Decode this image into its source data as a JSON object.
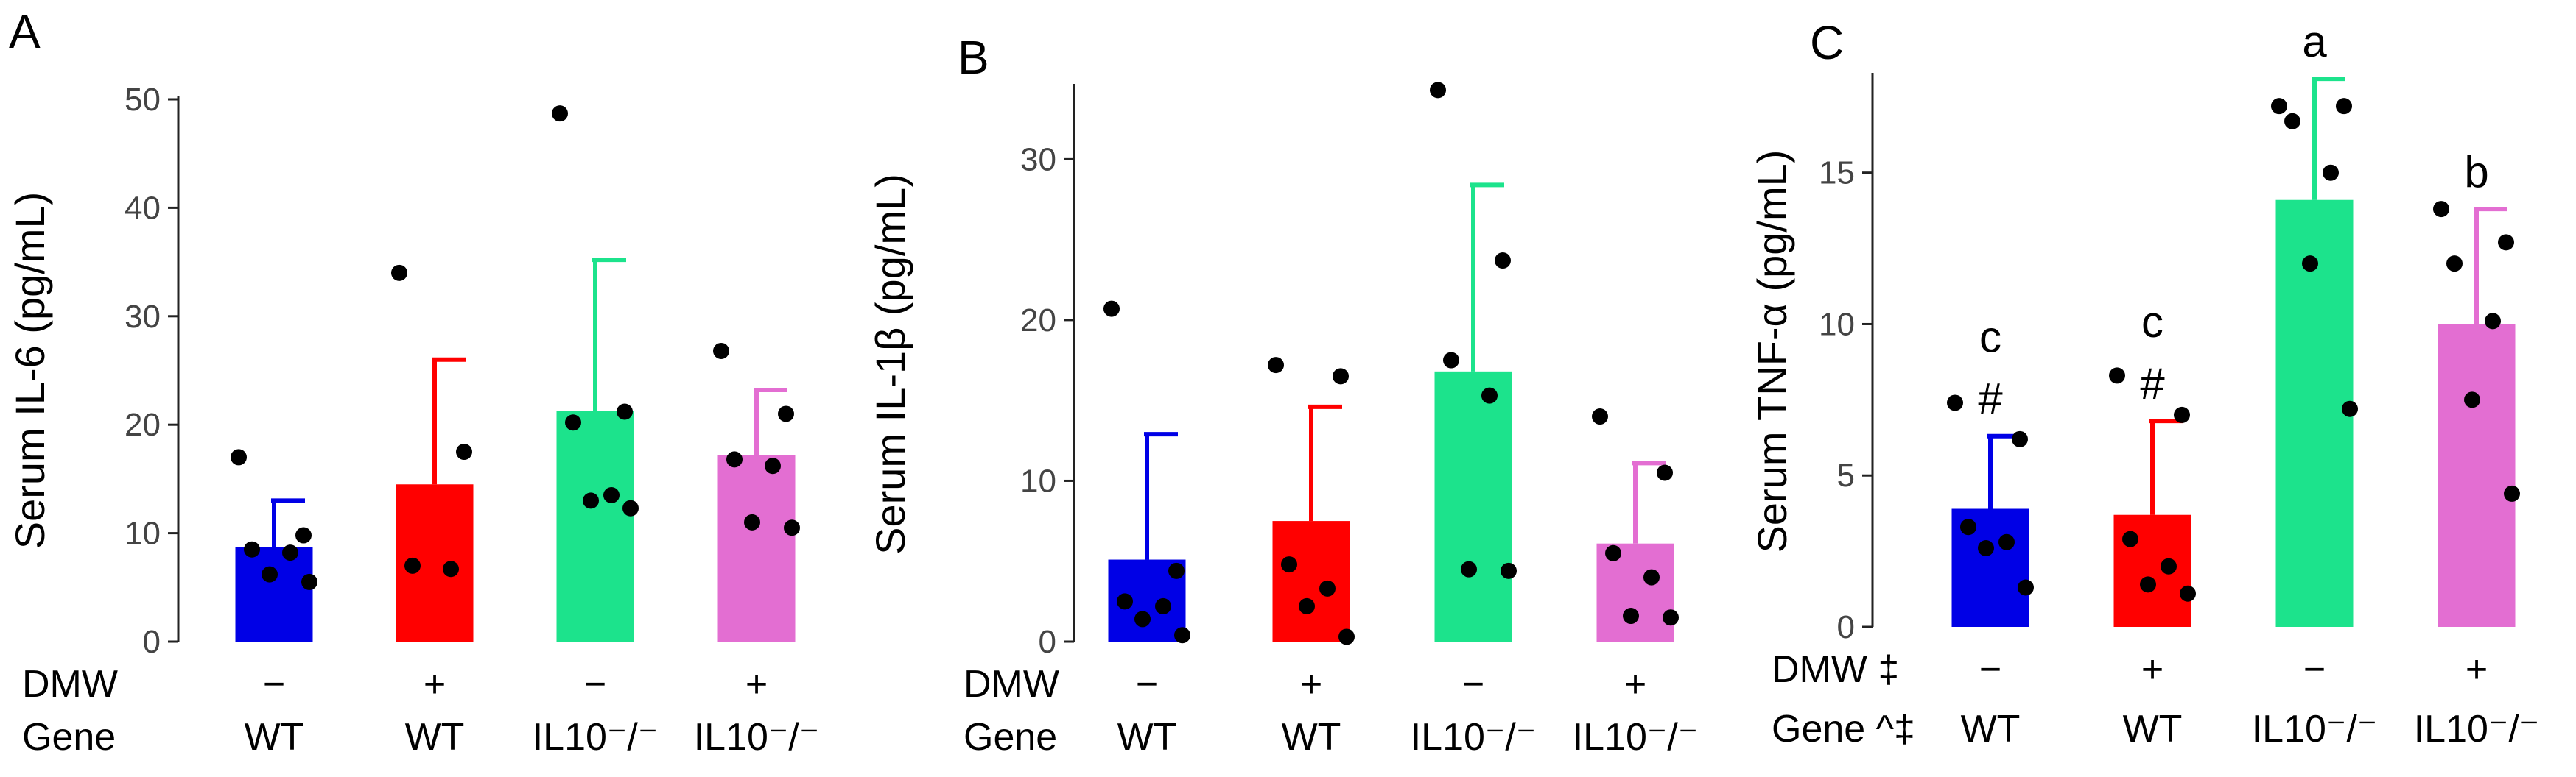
{
  "chart_data": [
    {
      "type": "bar",
      "panel_label": "A",
      "ylabel": "Serum IL-6 (pg/mL)",
      "ylim": [
        0,
        50
      ],
      "yticks": [
        0,
        10,
        20,
        30,
        40,
        50
      ],
      "dmw_label": "DMW",
      "gene_label": "Gene",
      "groups": [
        {
          "dmw": "−",
          "gene": "WT",
          "value": 8.7,
          "error": 4.3,
          "color": "#0000e6",
          "points": [
            17.0,
            9.8,
            8.5,
            8.2,
            6.2,
            5.5
          ],
          "sig": []
        },
        {
          "dmw": "+",
          "gene": "WT",
          "value": 14.5,
          "error": 11.5,
          "color": "#ff0000",
          "points": [
            34.0,
            17.5,
            7.0,
            6.7
          ],
          "sig": []
        },
        {
          "dmw": "−",
          "gene": "IL10⁻/⁻",
          "value": 21.3,
          "error": 13.9,
          "color": "#1ce38c",
          "points": [
            48.7,
            21.2,
            20.2,
            13.5,
            13.0,
            12.3
          ],
          "sig": []
        },
        {
          "dmw": "+",
          "gene": "IL10⁻/⁻",
          "value": 17.2,
          "error": 6.0,
          "color": "#e36ed2",
          "points": [
            26.8,
            21.0,
            16.8,
            16.2,
            11.0,
            10.5
          ],
          "sig": []
        }
      ]
    },
    {
      "type": "bar",
      "panel_label": "B",
      "ylabel": "Serum IL-1β (pg/mL)",
      "ylim": [
        0,
        34.5
      ],
      "yticks": [
        0,
        10,
        20,
        30
      ],
      "dmw_label": "DMW",
      "gene_label": "Gene",
      "groups": [
        {
          "dmw": "−",
          "gene": "WT",
          "value": 5.1,
          "error": 7.8,
          "color": "#0000e6",
          "points": [
            20.7,
            4.4,
            2.5,
            2.2,
            1.4,
            0.4
          ],
          "sig": []
        },
        {
          "dmw": "+",
          "gene": "WT",
          "value": 7.5,
          "error": 7.1,
          "color": "#ff0000",
          "points": [
            17.2,
            16.5,
            4.8,
            3.3,
            2.2,
            0.3
          ],
          "sig": []
        },
        {
          "dmw": "−",
          "gene": "IL10⁻/⁻",
          "value": 16.8,
          "error": 11.6,
          "color": "#1ce38c",
          "points": [
            34.3,
            23.7,
            17.5,
            15.3,
            4.5,
            4.4
          ],
          "sig": []
        },
        {
          "dmw": "+",
          "gene": "IL10⁻/⁻",
          "value": 6.1,
          "error": 5.0,
          "color": "#e36ed2",
          "points": [
            14.0,
            10.5,
            5.5,
            4.0,
            1.6,
            1.5
          ],
          "sig": []
        }
      ]
    },
    {
      "type": "bar",
      "panel_label": "C",
      "ylabel": "Serum TNF-α (pg/mL)",
      "ylim": [
        0,
        18.2
      ],
      "yticks": [
        0,
        5,
        10,
        15
      ],
      "dmw_label": "DMW ‡",
      "gene_label": "Gene ^‡",
      "groups": [
        {
          "dmw": "−",
          "gene": "WT",
          "value": 3.9,
          "error": 2.4,
          "color": "#0000e6",
          "points": [
            7.4,
            6.2,
            3.3,
            2.8,
            2.6,
            1.3
          ],
          "sig": [
            "#",
            "c"
          ]
        },
        {
          "dmw": "+",
          "gene": "WT",
          "value": 3.7,
          "error": 3.1,
          "color": "#ff0000",
          "points": [
            8.3,
            7.0,
            2.9,
            2.0,
            1.4,
            1.1
          ],
          "sig": [
            "#",
            "c"
          ]
        },
        {
          "dmw": "−",
          "gene": "IL10⁻/⁻",
          "value": 14.1,
          "error": 4.0,
          "color": "#1ce38c",
          "points": [
            17.2,
            17.2,
            16.7,
            15.0,
            12.0,
            7.2
          ],
          "sig": [
            "a"
          ]
        },
        {
          "dmw": "+",
          "gene": "IL10⁻/⁻",
          "value": 10.0,
          "error": 3.8,
          "color": "#e36ed2",
          "points": [
            13.8,
            12.7,
            12.0,
            10.1,
            7.5,
            4.4
          ],
          "sig": [
            "b"
          ]
        }
      ]
    }
  ]
}
